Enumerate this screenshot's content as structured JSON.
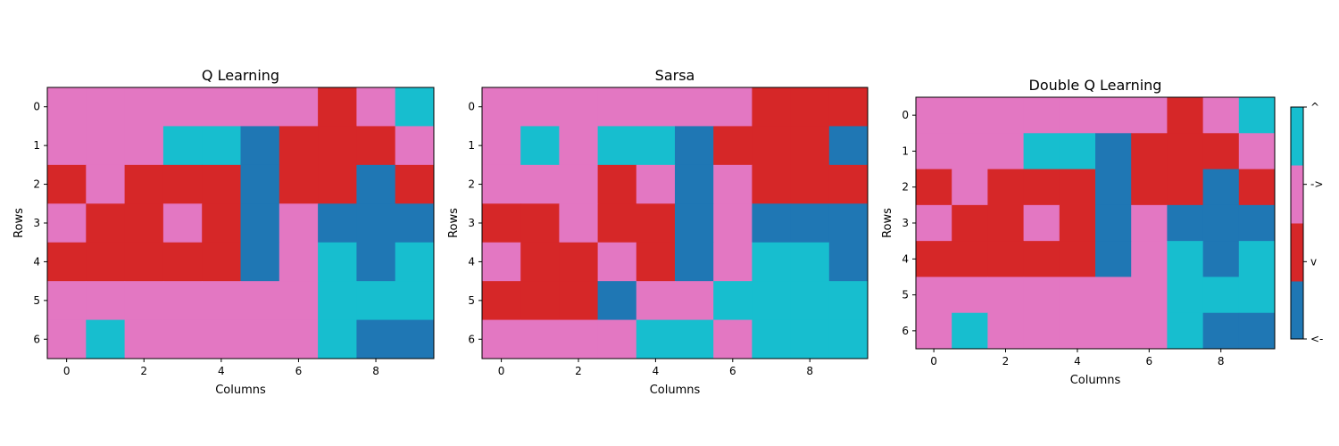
{
  "chart_data": [
    {
      "type": "heatmap",
      "title": "Q Learning",
      "xlabel": "Columns",
      "ylabel": "Rows",
      "x_ticks": [
        0,
        2,
        4,
        6,
        8
      ],
      "y_ticks": [
        0,
        1,
        2,
        3,
        4,
        5,
        6
      ],
      "grid": false,
      "values": [
        [
          "->",
          "->",
          "->",
          "->",
          "->",
          "->",
          "->",
          "v",
          "->",
          "^"
        ],
        [
          "->",
          "->",
          "->",
          "^",
          "^",
          "<-",
          "v",
          "v",
          "v",
          "->"
        ],
        [
          "v",
          "->",
          "v",
          "v",
          "v",
          "<-",
          "v",
          "v",
          "<-",
          "v"
        ],
        [
          "->",
          "v",
          "v",
          "->",
          "v",
          "<-",
          "->",
          "<-",
          "<-",
          "<-"
        ],
        [
          "v",
          "v",
          "v",
          "v",
          "v",
          "<-",
          "->",
          "^",
          "<-",
          "^"
        ],
        [
          "->",
          "->",
          "->",
          "->",
          "->",
          "->",
          "->",
          "^",
          "^",
          "^"
        ],
        [
          "->",
          "^",
          "->",
          "->",
          "->",
          "->",
          "->",
          "^",
          "<-",
          "<-"
        ]
      ]
    },
    {
      "type": "heatmap",
      "title": "Sarsa",
      "xlabel": "Columns",
      "ylabel": "Rows",
      "x_ticks": [
        0,
        2,
        4,
        6,
        8
      ],
      "y_ticks": [
        0,
        1,
        2,
        3,
        4,
        5,
        6
      ],
      "grid": false,
      "values": [
        [
          "->",
          "->",
          "->",
          "->",
          "->",
          "->",
          "->",
          "v",
          "v",
          "v"
        ],
        [
          "->",
          "^",
          "->",
          "^",
          "^",
          "<-",
          "v",
          "v",
          "v",
          "<-"
        ],
        [
          "->",
          "->",
          "->",
          "v",
          "->",
          "<-",
          "->",
          "v",
          "v",
          "v"
        ],
        [
          "v",
          "v",
          "->",
          "v",
          "v",
          "<-",
          "->",
          "<-",
          "<-",
          "<-"
        ],
        [
          "->",
          "v",
          "v",
          "->",
          "v",
          "<-",
          "->",
          "^",
          "^",
          "<-"
        ],
        [
          "v",
          "v",
          "v",
          "<-",
          "->",
          "->",
          "^",
          "^",
          "^",
          "^"
        ],
        [
          "->",
          "->",
          "->",
          "->",
          "^",
          "^",
          "->",
          "^",
          "^",
          "^"
        ]
      ]
    },
    {
      "type": "heatmap",
      "title": "Double Q Learning",
      "xlabel": "Columns",
      "ylabel": "Rows",
      "x_ticks": [
        0,
        2,
        4,
        6,
        8
      ],
      "y_ticks": [
        0,
        1,
        2,
        3,
        4,
        5,
        6
      ],
      "grid": false,
      "values": [
        [
          "->",
          "->",
          "->",
          "->",
          "->",
          "->",
          "->",
          "v",
          "->",
          "^"
        ],
        [
          "->",
          "->",
          "->",
          "^",
          "^",
          "<-",
          "v",
          "v",
          "v",
          "->"
        ],
        [
          "v",
          "->",
          "v",
          "v",
          "v",
          "<-",
          "v",
          "v",
          "<-",
          "v"
        ],
        [
          "->",
          "v",
          "v",
          "->",
          "v",
          "<-",
          "->",
          "<-",
          "<-",
          "<-"
        ],
        [
          "v",
          "v",
          "v",
          "v",
          "v",
          "<-",
          "->",
          "^",
          "<-",
          "^"
        ],
        [
          "->",
          "->",
          "->",
          "->",
          "->",
          "->",
          "->",
          "^",
          "^",
          "^"
        ],
        [
          "->",
          "^",
          "->",
          "->",
          "->",
          "->",
          "->",
          "^",
          "<-",
          "<-"
        ]
      ]
    }
  ],
  "colorbar": {
    "order": [
      "<-",
      "v",
      "->",
      "^"
    ],
    "labels": [
      "<-",
      "v",
      "->",
      "^"
    ],
    "colors": {
      "<-": "#1f77b4",
      "v": "#d62728",
      "->": "#e377c2",
      "^": "#17becf"
    }
  }
}
